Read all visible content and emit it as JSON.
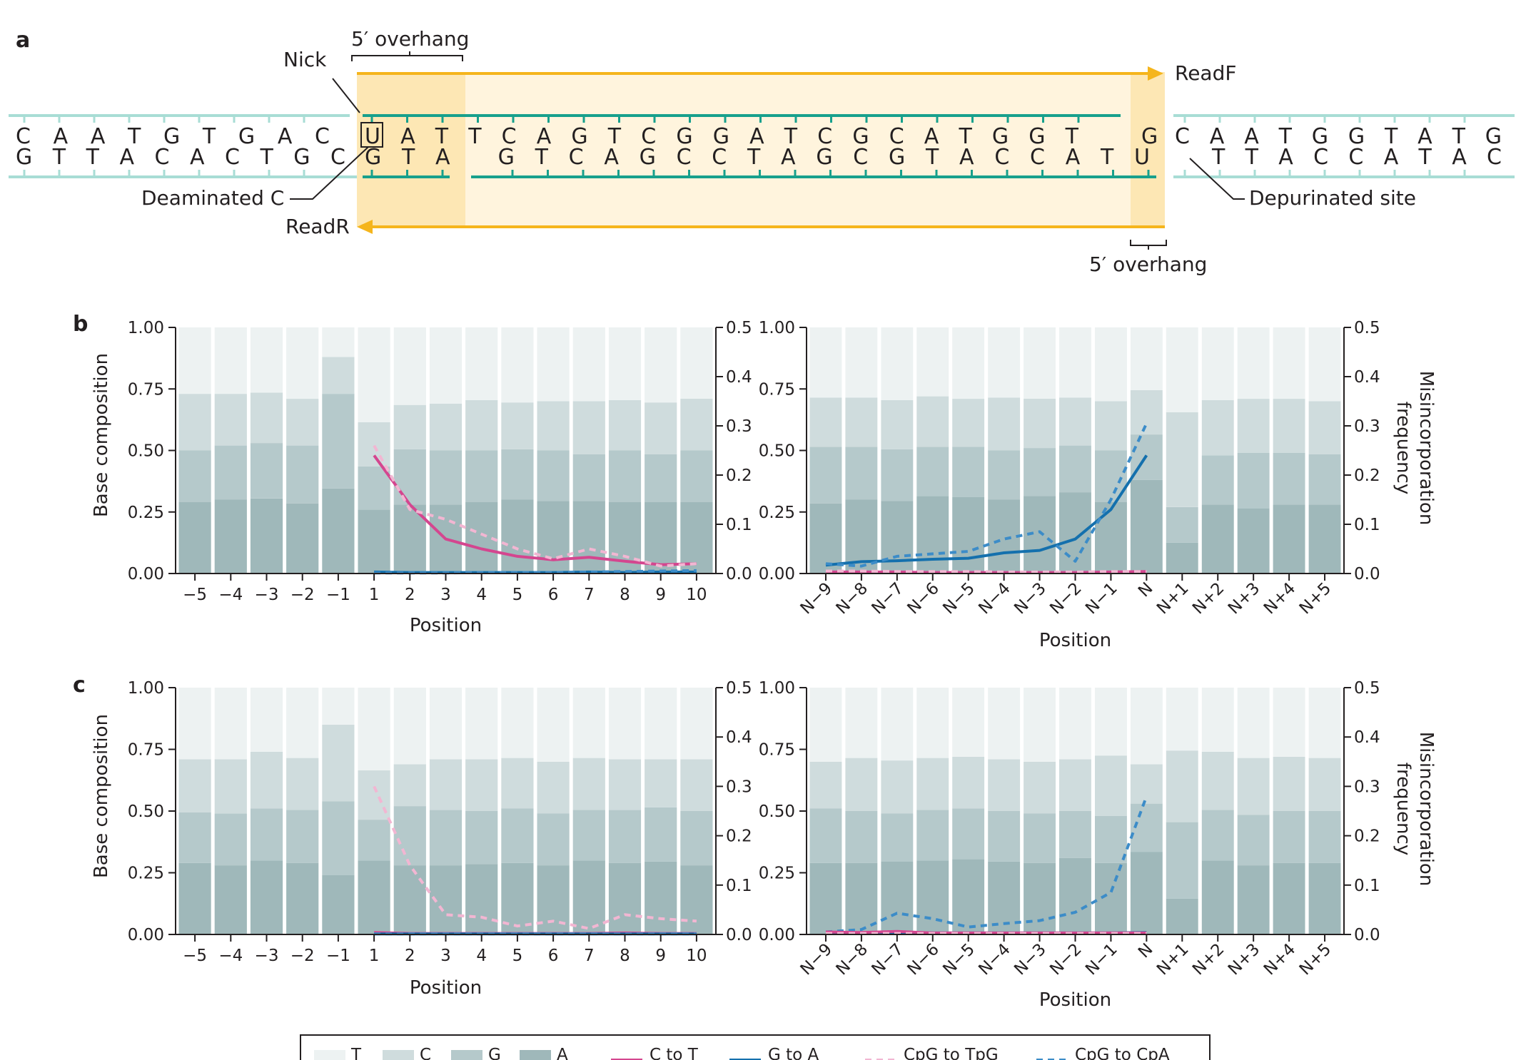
{
  "panel_a": {
    "letter": "a",
    "overhang_top": "5′ overhang",
    "overhang_bottom": "5′ overhang",
    "nick": "Nick",
    "readF": "ReadF",
    "readR": "ReadR",
    "deaminated": "Deaminated C",
    "depurinated": "Depurinated site",
    "top_left": "C A A T G T G A C",
    "bottom_left": "G T T A C A C T G C",
    "top_mid": "U A T T C A G T C G G A T C G C A T G G T",
    "bottom_mid": "G T A   G T C A G C C T A G C G T A C C A T U",
    "top_right_G": "G",
    "top_right": "C A A T G G T A T G",
    "bottom_right": "T T A C C A T A C"
  },
  "chart_data": [
    {
      "panel": "b",
      "side": "5prime",
      "type": "bar",
      "categories": [
        "−5",
        "−4",
        "−3",
        "−2",
        "−1",
        "1",
        "2",
        "3",
        "4",
        "5",
        "6",
        "7",
        "8",
        "9",
        "10"
      ],
      "series": [
        {
          "name": "A",
          "values": [
            0.29,
            0.3,
            0.305,
            0.285,
            0.345,
            0.26,
            0.28,
            0.28,
            0.29,
            0.3,
            0.295,
            0.295,
            0.29,
            0.29,
            0.29
          ]
        },
        {
          "name": "G",
          "values": [
            0.21,
            0.22,
            0.225,
            0.235,
            0.385,
            0.175,
            0.225,
            0.22,
            0.21,
            0.205,
            0.205,
            0.19,
            0.21,
            0.195,
            0.21
          ]
        },
        {
          "name": "C",
          "values": [
            0.23,
            0.21,
            0.205,
            0.19,
            0.15,
            0.18,
            0.18,
            0.19,
            0.205,
            0.19,
            0.2,
            0.215,
            0.205,
            0.21,
            0.21
          ]
        },
        {
          "name": "T",
          "values": [
            0.27,
            0.27,
            0.265,
            0.29,
            0.12,
            0.385,
            0.315,
            0.31,
            0.295,
            0.305,
            0.3,
            0.3,
            0.295,
            0.305,
            0.29
          ]
        }
      ],
      "lines": [
        {
          "name": "C to T",
          "x": [
            1,
            2,
            3,
            4,
            5,
            6,
            7,
            8,
            9,
            10
          ],
          "values": [
            0.24,
            0.14,
            0.07,
            0.05,
            0.035,
            0.028,
            0.033,
            0.025,
            0.018,
            0.02
          ]
        },
        {
          "name": "G to A",
          "x": [
            1,
            2,
            3,
            4,
            5,
            6,
            7,
            8,
            9,
            10
          ],
          "values": [
            0.003,
            0.002,
            0.002,
            0.002,
            0.002,
            0.002,
            0.003,
            0.002,
            0.003,
            0.003
          ]
        },
        {
          "name": "CpG to TpG",
          "x": [
            1,
            2,
            3,
            4,
            5,
            6,
            7,
            8,
            9,
            10
          ],
          "values": [
            0.26,
            0.13,
            0.11,
            0.08,
            0.05,
            0.03,
            0.05,
            0.035,
            0.015,
            0.02
          ]
        },
        {
          "name": "CpG to CpA",
          "x": [
            1,
            2,
            3,
            4,
            5,
            6,
            7,
            8,
            9,
            10
          ],
          "values": [
            0.001,
            0.001,
            0.001,
            0.002,
            0.002,
            0.002,
            0.003,
            0.004,
            0.005,
            0.006
          ]
        }
      ],
      "ylabel": "Base composition",
      "ylim": [
        0,
        1.0
      ],
      "y2lim": [
        0,
        0.5
      ],
      "xlabel": "Position"
    },
    {
      "panel": "b",
      "side": "3prime",
      "type": "bar",
      "categories": [
        "N−9",
        "N−8",
        "N−7",
        "N−6",
        "N−5",
        "N−4",
        "N−3",
        "N−2",
        "N−1",
        "N",
        "N+1",
        "N+2",
        "N+3",
        "N+4",
        "N+5"
      ],
      "series": [
        {
          "name": "A",
          "values": [
            0.285,
            0.3,
            0.295,
            0.315,
            0.31,
            0.3,
            0.315,
            0.33,
            0.29,
            0.38,
            0.125,
            0.28,
            0.265,
            0.28,
            0.28
          ]
        },
        {
          "name": "G",
          "values": [
            0.23,
            0.215,
            0.21,
            0.2,
            0.205,
            0.2,
            0.195,
            0.19,
            0.21,
            0.185,
            0.145,
            0.2,
            0.225,
            0.21,
            0.205
          ]
        },
        {
          "name": "C",
          "values": [
            0.2,
            0.2,
            0.2,
            0.205,
            0.195,
            0.215,
            0.2,
            0.195,
            0.2,
            0.18,
            0.385,
            0.225,
            0.22,
            0.22,
            0.215
          ]
        },
        {
          "name": "T",
          "values": [
            0.285,
            0.285,
            0.295,
            0.28,
            0.29,
            0.285,
            0.29,
            0.285,
            0.3,
            0.255,
            0.345,
            0.295,
            0.29,
            0.29,
            0.3
          ]
        }
      ],
      "lines": [
        {
          "name": "G to A",
          "x": [
            "N−9",
            "N−8",
            "N−7",
            "N−6",
            "N−5",
            "N−4",
            "N−3",
            "N−2",
            "N−1",
            "N"
          ],
          "values": [
            0.017,
            0.024,
            0.026,
            0.029,
            0.031,
            0.042,
            0.047,
            0.07,
            0.13,
            0.24
          ]
        },
        {
          "name": "C to T",
          "x": [
            "N−9",
            "N−8",
            "N−7",
            "N−6",
            "N−5",
            "N−4",
            "N−3",
            "N−2",
            "N−1",
            "N"
          ],
          "values": [
            0.003,
            0.003,
            0.003,
            0.002,
            0.002,
            0.002,
            0.002,
            0.002,
            0.003,
            0.004
          ]
        },
        {
          "name": "CpG to CpA",
          "x": [
            "N−9",
            "N−8",
            "N−7",
            "N−6",
            "N−5",
            "N−4",
            "N−3",
            "N−2",
            "N−1",
            "N"
          ],
          "values": [
            0.02,
            0.015,
            0.035,
            0.04,
            0.045,
            0.07,
            0.085,
            0.025,
            0.15,
            0.305
          ]
        },
        {
          "name": "CpG to TpG",
          "x": [
            "N−9",
            "N−8",
            "N−7",
            "N−6",
            "N−5",
            "N−4",
            "N−3",
            "N−2",
            "N−1",
            "N"
          ],
          "values": [
            0.005,
            0.005,
            0.004,
            0.004,
            0.004,
            0.003,
            0.003,
            0.003,
            0.004,
            0.004
          ]
        }
      ],
      "ylim": [
        0,
        1.0
      ],
      "y2label": "Misincorporation frequency",
      "y2lim": [
        0,
        0.5
      ],
      "xlabel": "Position"
    },
    {
      "panel": "c",
      "side": "5prime",
      "type": "bar",
      "categories": [
        "−5",
        "−4",
        "−3",
        "−2",
        "−1",
        "1",
        "2",
        "3",
        "4",
        "5",
        "6",
        "7",
        "8",
        "9",
        "10"
      ],
      "series": [
        {
          "name": "A",
          "values": [
            0.29,
            0.28,
            0.3,
            0.29,
            0.24,
            0.3,
            0.28,
            0.28,
            0.285,
            0.29,
            0.28,
            0.3,
            0.29,
            0.295,
            0.28
          ]
        },
        {
          "name": "G",
          "values": [
            0.205,
            0.21,
            0.21,
            0.215,
            0.3,
            0.165,
            0.24,
            0.225,
            0.215,
            0.22,
            0.21,
            0.205,
            0.215,
            0.22,
            0.22
          ]
        },
        {
          "name": "C",
          "values": [
            0.215,
            0.22,
            0.23,
            0.21,
            0.31,
            0.2,
            0.17,
            0.205,
            0.21,
            0.205,
            0.21,
            0.21,
            0.205,
            0.195,
            0.21
          ]
        },
        {
          "name": "T",
          "values": [
            0.29,
            0.29,
            0.26,
            0.285,
            0.15,
            0.335,
            0.31,
            0.29,
            0.29,
            0.285,
            0.3,
            0.285,
            0.29,
            0.29,
            0.29
          ]
        }
      ],
      "lines": [
        {
          "name": "C to T",
          "x": [
            1,
            2,
            3,
            4,
            5,
            6,
            7,
            8,
            9,
            10
          ],
          "values": [
            0.004,
            0.002,
            0.002,
            0.002,
            0.002,
            0.002,
            0.002,
            0.003,
            0.002,
            0.002
          ]
        },
        {
          "name": "G to A",
          "x": [
            1,
            2,
            3,
            4,
            5,
            6,
            7,
            8,
            9,
            10
          ],
          "values": [
            0.001,
            0.001,
            0.001,
            0.001,
            0.001,
            0.001,
            0.001,
            0.001,
            0.001,
            0.001
          ]
        },
        {
          "name": "CpG to TpG",
          "x": [
            1,
            2,
            3,
            4,
            5,
            6,
            7,
            8,
            9,
            10
          ],
          "values": [
            0.3,
            0.14,
            0.04,
            0.035,
            0.017,
            0.027,
            0.012,
            0.04,
            0.032,
            0.027
          ]
        },
        {
          "name": "CpG to CpA",
          "x": [
            1,
            2,
            3,
            4,
            5,
            6,
            7,
            8,
            9,
            10
          ],
          "values": [
            0.001,
            0.001,
            0.001,
            0.001,
            0.001,
            0.001,
            0.001,
            0.001,
            0.001,
            0.001
          ]
        }
      ],
      "ylabel": "Base composition",
      "ylim": [
        0,
        1.0
      ],
      "y2lim": [
        0,
        0.5
      ],
      "xlabel": "Position"
    },
    {
      "panel": "c",
      "side": "3prime",
      "type": "bar",
      "categories": [
        "N−9",
        "N−8",
        "N−7",
        "N−6",
        "N−5",
        "N−4",
        "N−3",
        "N−2",
        "N−1",
        "N",
        "N+1",
        "N+2",
        "N+3",
        "N+4",
        "N+5"
      ],
      "series": [
        {
          "name": "A",
          "values": [
            0.29,
            0.29,
            0.295,
            0.3,
            0.305,
            0.295,
            0.29,
            0.31,
            0.29,
            0.335,
            0.145,
            0.3,
            0.28,
            0.29,
            0.29
          ]
        },
        {
          "name": "G",
          "values": [
            0.22,
            0.21,
            0.195,
            0.205,
            0.205,
            0.205,
            0.2,
            0.19,
            0.19,
            0.195,
            0.31,
            0.205,
            0.205,
            0.21,
            0.21
          ]
        },
        {
          "name": "C",
          "values": [
            0.19,
            0.215,
            0.215,
            0.21,
            0.21,
            0.21,
            0.21,
            0.21,
            0.245,
            0.16,
            0.29,
            0.235,
            0.23,
            0.22,
            0.215
          ]
        },
        {
          "name": "T",
          "values": [
            0.3,
            0.285,
            0.295,
            0.285,
            0.28,
            0.29,
            0.3,
            0.29,
            0.275,
            0.31,
            0.255,
            0.26,
            0.285,
            0.28,
            0.285
          ]
        }
      ],
      "lines": [
        {
          "name": "CpG to CpA",
          "x": [
            "N−9",
            "N−8",
            "N−7",
            "N−6",
            "N−5",
            "N−4",
            "N−3",
            "N−2",
            "N−1",
            "N"
          ],
          "values": [
            0.005,
            0.01,
            0.043,
            0.032,
            0.015,
            0.022,
            0.028,
            0.045,
            0.085,
            0.28
          ]
        },
        {
          "name": "G to A",
          "x": [
            "N−9",
            "N−8",
            "N−7",
            "N−6",
            "N−5",
            "N−4",
            "N−3",
            "N−2",
            "N−1",
            "N"
          ],
          "values": [
            0.003,
            0.003,
            0.004,
            0.003,
            0.003,
            0.003,
            0.003,
            0.003,
            0.003,
            0.004
          ]
        },
        {
          "name": "C to T",
          "x": [
            "N−9",
            "N−8",
            "N−7",
            "N−6",
            "N−5",
            "N−4",
            "N−3",
            "N−2",
            "N−1",
            "N"
          ],
          "values": [
            0.005,
            0.004,
            0.006,
            0.003,
            0.003,
            0.003,
            0.003,
            0.003,
            0.003,
            0.003
          ]
        },
        {
          "name": "CpG to TpG",
          "x": [
            "N−9",
            "N−8",
            "N−7",
            "N−6",
            "N−5",
            "N−4",
            "N−3",
            "N−2",
            "N−1",
            "N"
          ],
          "values": [
            0.002,
            0.002,
            0.002,
            0.002,
            0.002,
            0.002,
            0.002,
            0.002,
            0.002,
            0.002
          ]
        }
      ],
      "ylim": [
        0,
        1.0
      ],
      "y2label": "Misincorporation frequency",
      "y2lim": [
        0,
        0.5
      ],
      "xlabel": "Position"
    }
  ],
  "axes": {
    "y_ticks": [
      "0.00",
      "0.25",
      "0.50",
      "0.75",
      "1.00"
    ],
    "y2_ticks": [
      "0.0",
      "0.1",
      "0.2",
      "0.3",
      "0.4",
      "0.5"
    ],
    "ylabel": "Base composition",
    "y2label_line1": "Misincorporation",
    "y2label_line2": "frequency",
    "xlabel": "Position",
    "panel_b": "b",
    "panel_c": "c"
  },
  "legend": {
    "items": [
      {
        "label": "T",
        "kind": "swatch",
        "color": "#edf2f2"
      },
      {
        "label": "C",
        "kind": "swatch",
        "color": "#cfdcdd"
      },
      {
        "label": "G",
        "kind": "swatch",
        "color": "#b5c9cb"
      },
      {
        "label": "A",
        "kind": "swatch",
        "color": "#9fb8ba"
      },
      {
        "label": "C to T",
        "kind": "line",
        "color": "#d4468f",
        "dash": ""
      },
      {
        "label": "G to A",
        "kind": "line",
        "color": "#1470ad",
        "dash": ""
      },
      {
        "label": "CpG to TpG",
        "kind": "line",
        "color": "#f2b6d2",
        "dash": "9,7"
      },
      {
        "label": "CpG to CpA",
        "kind": "line",
        "color": "#3c8cc8",
        "dash": "9,7"
      }
    ]
  },
  "colors": {
    "T": "#edf2f2",
    "C": "#cfdcdd",
    "G": "#b5c9cb",
    "A": "#9fb8ba",
    "dna_light": "#a8ddd5",
    "dna_dark": "#17a08c",
    "read_arrow": "#f5b51c",
    "highlight_light": "#fff4dd",
    "highlight_dark": "#fde7b4"
  }
}
